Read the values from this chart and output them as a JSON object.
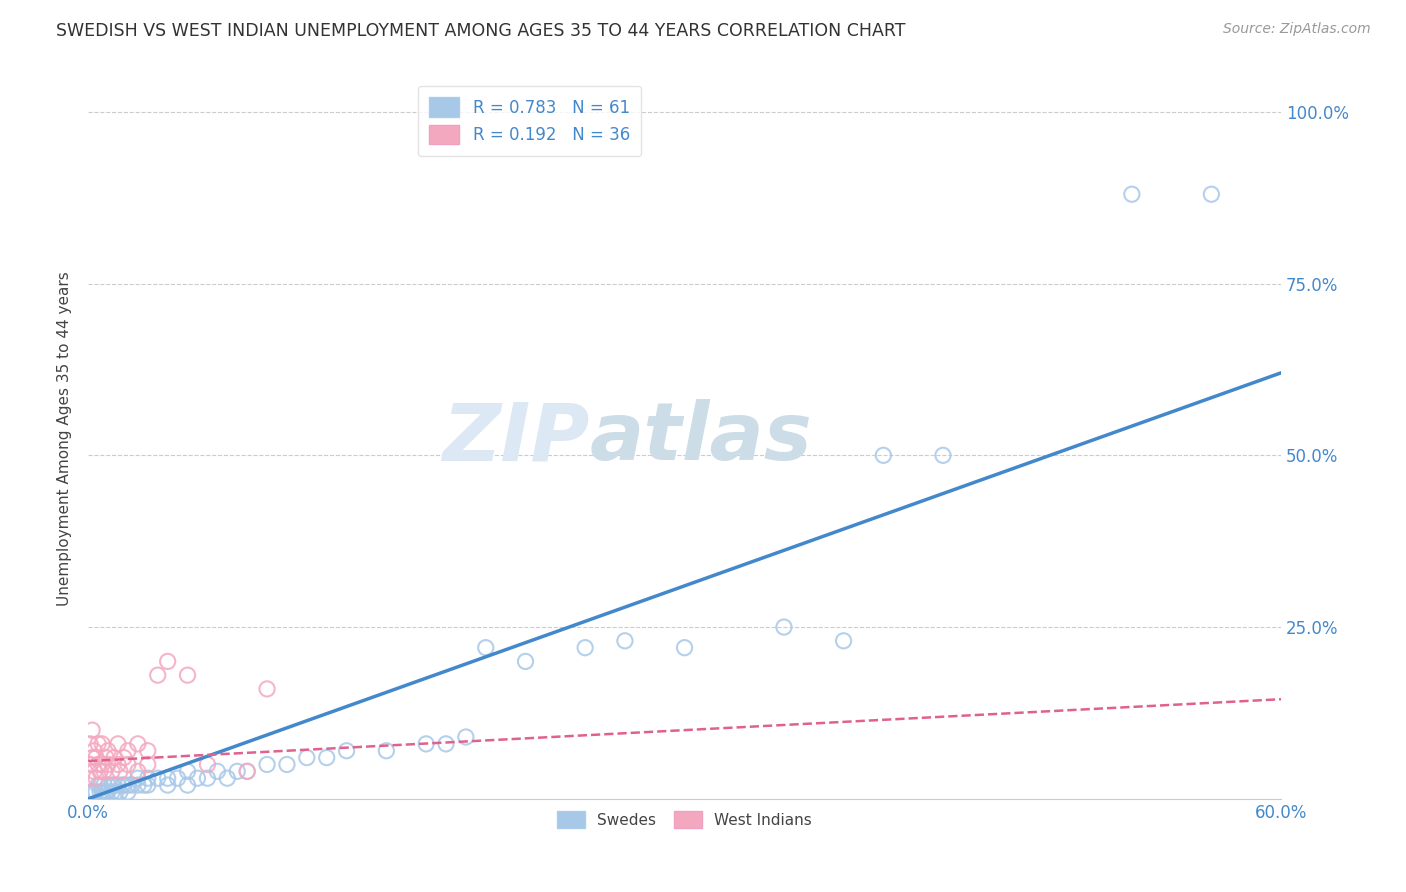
{
  "title": "SWEDISH VS WEST INDIAN UNEMPLOYMENT AMONG AGES 35 TO 44 YEARS CORRELATION CHART",
  "source": "Source: ZipAtlas.com",
  "ylabel": "Unemployment Among Ages 35 to 44 years",
  "xmin": 0.0,
  "xmax": 0.6,
  "ymin": 0.0,
  "ymax": 1.05,
  "swede_color": "#a8c8e8",
  "west_indian_color": "#f4a8c0",
  "swede_line_color": "#4488cc",
  "west_indian_line_color": "#e06090",
  "watermark_color_zip": "#d8e4f0",
  "watermark_color_atlas": "#d0dce8",
  "background_color": "#ffffff",
  "legend_box_color": "#e8f0f8",
  "legend_text_color": "#4488cc",
  "swede_marker_edge": "#88b8e0",
  "west_indian_marker_edge": "#f080a8",
  "swedes_x": [
    0.0,
    0.002,
    0.003,
    0.004,
    0.005,
    0.006,
    0.006,
    0.007,
    0.008,
    0.008,
    0.009,
    0.01,
    0.01,
    0.012,
    0.012,
    0.013,
    0.014,
    0.015,
    0.016,
    0.017,
    0.018,
    0.02,
    0.02,
    0.022,
    0.025,
    0.025,
    0.028,
    0.03,
    0.03,
    0.035,
    0.04,
    0.04,
    0.045,
    0.05,
    0.05,
    0.055,
    0.06,
    0.065,
    0.07,
    0.075,
    0.08,
    0.09,
    0.1,
    0.11,
    0.12,
    0.13,
    0.15,
    0.17,
    0.18,
    0.19,
    0.2,
    0.22,
    0.25,
    0.27,
    0.3,
    0.35,
    0.38,
    0.4,
    0.43,
    0.525,
    0.565
  ],
  "swedes_y": [
    0.01,
    0.01,
    0.01,
    0.01,
    0.02,
    0.01,
    0.02,
    0.01,
    0.01,
    0.02,
    0.01,
    0.01,
    0.02,
    0.01,
    0.02,
    0.02,
    0.01,
    0.02,
    0.01,
    0.02,
    0.02,
    0.01,
    0.02,
    0.02,
    0.02,
    0.03,
    0.02,
    0.03,
    0.02,
    0.03,
    0.02,
    0.03,
    0.03,
    0.02,
    0.04,
    0.03,
    0.03,
    0.04,
    0.03,
    0.04,
    0.04,
    0.05,
    0.05,
    0.06,
    0.06,
    0.07,
    0.07,
    0.08,
    0.08,
    0.09,
    0.22,
    0.2,
    0.22,
    0.23,
    0.22,
    0.25,
    0.23,
    0.5,
    0.5,
    0.88,
    0.88
  ],
  "west_indians_x": [
    0.0,
    0.001,
    0.001,
    0.002,
    0.002,
    0.003,
    0.003,
    0.004,
    0.004,
    0.005,
    0.005,
    0.006,
    0.007,
    0.007,
    0.008,
    0.009,
    0.01,
    0.01,
    0.012,
    0.013,
    0.015,
    0.015,
    0.016,
    0.018,
    0.02,
    0.02,
    0.025,
    0.025,
    0.03,
    0.03,
    0.035,
    0.04,
    0.05,
    0.06,
    0.08,
    0.09
  ],
  "west_indians_y": [
    0.03,
    0.05,
    0.08,
    0.06,
    0.1,
    0.04,
    0.07,
    0.03,
    0.06,
    0.05,
    0.08,
    0.04,
    0.05,
    0.08,
    0.04,
    0.06,
    0.05,
    0.07,
    0.04,
    0.06,
    0.05,
    0.08,
    0.04,
    0.06,
    0.05,
    0.07,
    0.04,
    0.08,
    0.05,
    0.07,
    0.18,
    0.2,
    0.18,
    0.05,
    0.04,
    0.16
  ],
  "swede_line_x0": 0.0,
  "swede_line_y0": 0.0,
  "swede_line_x1": 0.6,
  "swede_line_y1": 0.62,
  "wi_line_x0": 0.0,
  "wi_line_y0": 0.055,
  "wi_line_x1": 0.6,
  "wi_line_y1": 0.145
}
